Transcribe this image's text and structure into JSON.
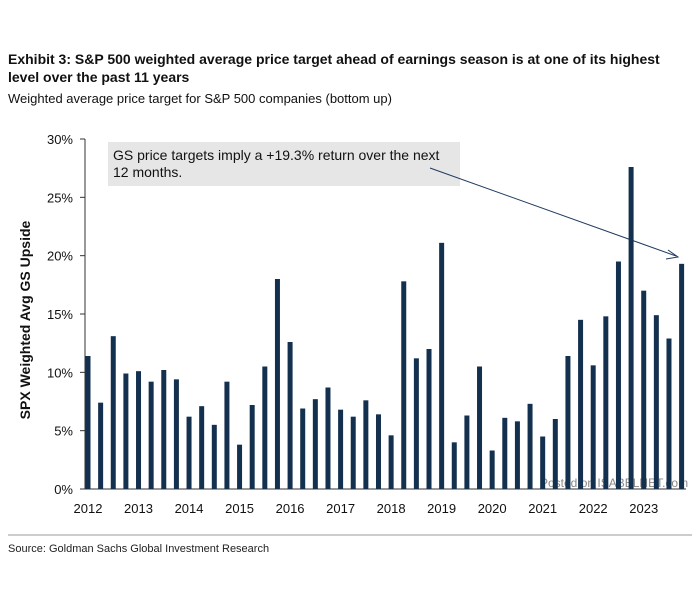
{
  "chart_data": {
    "type": "bar",
    "title": "Exhibit 3: S&P 500 weighted average price target ahead of earnings season is at one of its highest level over the past 11 years",
    "subtitle": "Weighted average price target for S&P 500 companies (bottom up)",
    "y_label": "SPX Weighted Avg GS Upside",
    "annotation": "GS price targets imply a +19.3% return over the next 12 months.",
    "source": "Source: Goldman Sachs Global Investment Research",
    "watermark": "Posted on ISABELNET.com",
    "color": "#14304f",
    "categories": [
      "2012",
      null,
      null,
      null,
      "2013",
      null,
      null,
      null,
      "2014",
      null,
      null,
      null,
      "2015",
      null,
      null,
      null,
      "2016",
      null,
      null,
      null,
      "2017",
      null,
      null,
      null,
      "2018",
      null,
      null,
      null,
      "2019",
      null,
      null,
      null,
      "2020",
      null,
      null,
      null,
      "2021",
      null,
      null,
      null,
      "2022",
      null,
      null,
      null,
      "2023",
      null,
      null,
      null
    ],
    "values": [
      11.4,
      7.4,
      13.1,
      9.9,
      10.1,
      9.2,
      10.2,
      9.4,
      6.2,
      7.1,
      5.5,
      9.2,
      3.8,
      7.2,
      10.5,
      18.0,
      12.6,
      6.9,
      7.7,
      8.7,
      6.8,
      6.2,
      7.6,
      6.4,
      4.6,
      17.8,
      11.2,
      12.0,
      21.1,
      4.0,
      6.3,
      10.5,
      3.3,
      6.1,
      5.8,
      7.3,
      4.5,
      6.0,
      11.4,
      14.5,
      10.6,
      14.8,
      19.5,
      27.6,
      17.0,
      14.9,
      12.9,
      19.3
    ],
    "ylim": [
      0,
      30
    ],
    "yticks": [
      {
        "value": 0,
        "label": "0%"
      },
      {
        "value": 5,
        "label": "5%"
      },
      {
        "value": 10,
        "label": "10%"
      },
      {
        "value": 15,
        "label": "15%"
      },
      {
        "value": 20,
        "label": "20%"
      },
      {
        "value": 25,
        "label": "25%"
      },
      {
        "value": 30,
        "label": "30%"
      }
    ]
  }
}
